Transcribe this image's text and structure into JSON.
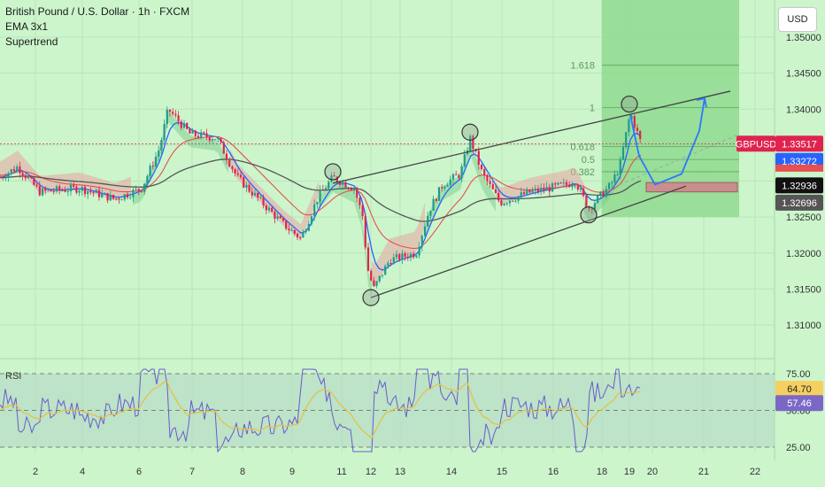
{
  "header": {
    "symbol_line": "British Pound / U.S. Dollar · 1h · FXCM",
    "indicator_1": "EMA 3x1",
    "indicator_2": "Supertrend"
  },
  "currency_button": "USD",
  "colors": {
    "background": "#ccf5cc",
    "candle_up": "#1f9c8a",
    "candle_down": "#e0234e",
    "ema_blue": "#2962ff",
    "ema_red": "#e65050",
    "ma_dark": "#555555",
    "box": "#8fd98f",
    "rsi_line": "#6a5acd",
    "rsi_ma": "#e6c040"
  },
  "price_tags": {
    "symbol_tag": "GBPUSD",
    "last_price": "1.33517",
    "tag_blue": "1.33272",
    "tag_black": "1.32936",
    "tag_grey": "1.32696"
  },
  "rsi_tags": {
    "rsi_value": "64.70",
    "rsi_ma_value": "57.46"
  },
  "rsi_label": "RSI",
  "fib_labels": [
    "1.618",
    "1",
    "0.618",
    "0.5",
    "0.382"
  ],
  "chart_data": {
    "type": "candlestick",
    "x_ticks": [
      "2",
      "4",
      "6",
      "7",
      "8",
      "9",
      "11",
      "12",
      "13",
      "14",
      "15",
      "16",
      "18",
      "19",
      "20",
      "21",
      "22"
    ],
    "y_ticks": [
      "1.35000",
      "1.34500",
      "1.34000",
      "1.33500",
      "1.33000",
      "1.32500",
      "1.32000",
      "1.31500",
      "1.31000"
    ],
    "ylim": [
      1.3068,
      1.3508
    ],
    "rsi_ticks": [
      "75.00",
      "50.00",
      "25.00"
    ],
    "rsi_lim": [
      20,
      80
    ],
    "trend_channel": {
      "upper": [
        [
          376,
          1.3297
        ],
        [
          825,
          1.3425
        ]
      ],
      "lower": [
        [
          419,
          1.3138
        ],
        [
          775,
          1.3293
        ]
      ]
    },
    "circles": [
      {
        "x": 376,
        "y": 1.3313
      },
      {
        "x": 419,
        "y": 1.3138
      },
      {
        "x": 531,
        "y": 1.3368
      },
      {
        "x": 665,
        "y": 1.3253
      },
      {
        "x": 711,
        "y": 1.3407
      }
    ],
    "projection_arrow": [
      [
        712,
        1.3392
      ],
      [
        722,
        1.3335
      ],
      [
        740,
        1.3295
      ],
      [
        770,
        1.331
      ],
      [
        790,
        1.337
      ],
      [
        796,
        1.3415
      ]
    ],
    "target_zone": [
      1.3285,
      1.3298
    ],
    "last_price": 1.33517,
    "rsi_last": 64.7
  }
}
